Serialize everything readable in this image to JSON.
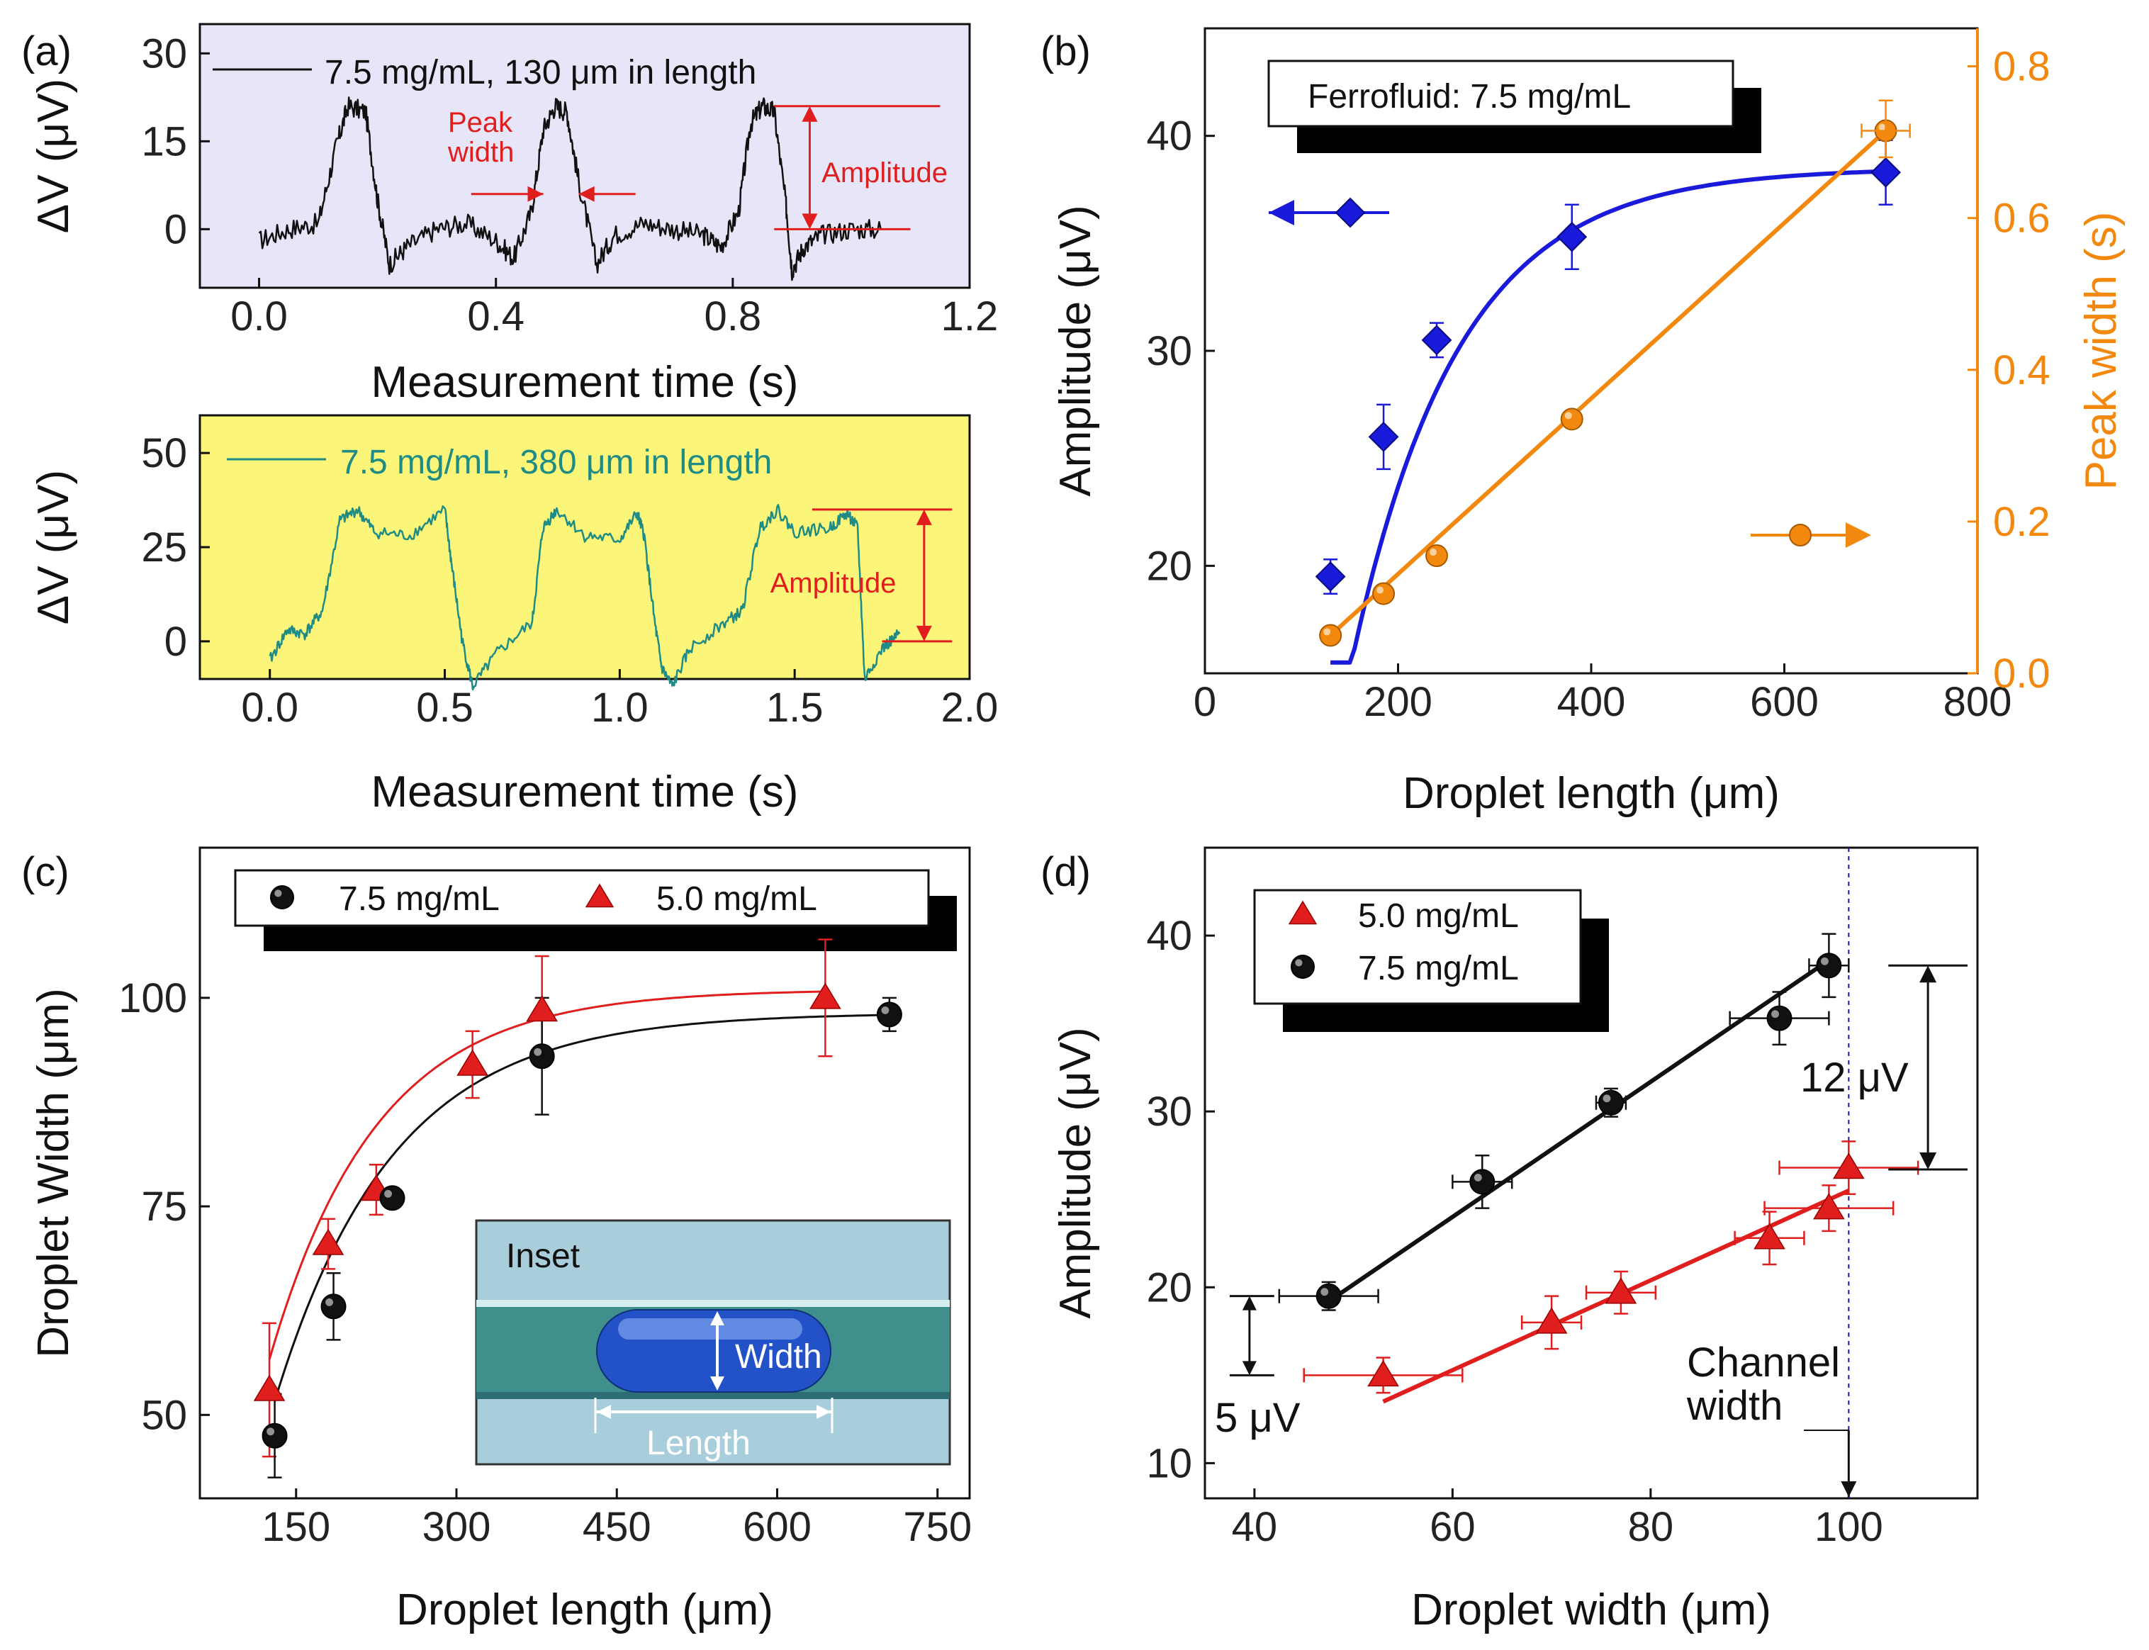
{
  "chart_data": [
    {
      "panel": "(a)",
      "type": "line",
      "subplots": [
        {
          "legend": "7.5 mg/mL, 130 μm in length",
          "xlabel": "Measurement time (s)",
          "ylabel": "ΔV (μV)",
          "xlim": [
            -0.1,
            1.2
          ],
          "ylim": [
            -10,
            35
          ],
          "xticks": [
            "0.0",
            "0.4",
            "0.8",
            "1.2"
          ],
          "yticks": [
            "0",
            "15",
            "30"
          ],
          "color": "#111111",
          "background": "#e7e6f8",
          "x": [
            0.0,
            0.05,
            0.1,
            0.13,
            0.15,
            0.18,
            0.2,
            0.22,
            0.25,
            0.3,
            0.35,
            0.4,
            0.43,
            0.46,
            0.48,
            0.5,
            0.52,
            0.54,
            0.57,
            0.6,
            0.65,
            0.7,
            0.75,
            0.78,
            0.81,
            0.83,
            0.85,
            0.87,
            0.89,
            0.9,
            0.92,
            0.95,
            1.0,
            1.05
          ],
          "values": [
            -2,
            0,
            1,
            14,
            21,
            20,
            5,
            -6,
            -3,
            0,
            1,
            -2,
            -5,
            3,
            17,
            21,
            20,
            8,
            -6,
            -1,
            1,
            0,
            -1,
            -3,
            3,
            18,
            21,
            20,
            4,
            -7,
            -3,
            -1,
            0,
            0
          ],
          "annotations": {
            "peak_width": "Peak\nwidth",
            "amplitude": "Amplitude"
          }
        },
        {
          "legend": "7.5 mg/mL, 380 μm in length",
          "xlabel": "Measurement time (s)",
          "ylabel": "ΔV (μV)",
          "xlim": [
            -0.2,
            2.0
          ],
          "ylim": [
            -10,
            60
          ],
          "xticks": [
            "0.0",
            "0.5",
            "1.0",
            "1.5",
            "2.0"
          ],
          "yticks": [
            "0",
            "25",
            "50"
          ],
          "color": "#1e8c85",
          "background": "#fbf57a",
          "x": [
            0.0,
            0.05,
            0.1,
            0.15,
            0.2,
            0.25,
            0.3,
            0.4,
            0.5,
            0.52,
            0.55,
            0.58,
            0.65,
            0.75,
            0.78,
            0.82,
            0.9,
            1.0,
            1.05,
            1.07,
            1.1,
            1.12,
            1.15,
            1.2,
            1.3,
            1.35,
            1.4,
            1.45,
            1.5,
            1.6,
            1.65,
            1.68,
            1.7,
            1.75,
            1.8
          ],
          "values": [
            -5,
            3,
            2,
            8,
            32,
            35,
            29,
            28,
            35,
            20,
            0,
            -12,
            -3,
            5,
            30,
            35,
            28,
            27,
            34,
            28,
            5,
            -7,
            -12,
            -2,
            5,
            8,
            30,
            35,
            29,
            30,
            34,
            30,
            -10,
            -2,
            2
          ],
          "annotations": {
            "amplitude": "Amplitude"
          }
        }
      ]
    },
    {
      "panel": "(b)",
      "type": "scatter",
      "title": "Ferrofluid: 7.5 mg/mL",
      "xlabel": "Droplet length (μm)",
      "ylabel": "Amplitude (μV)",
      "y2label": "Peak width (s)",
      "xlim": [
        0,
        800
      ],
      "ylim": [
        15,
        45
      ],
      "y2lim": [
        0,
        0.85
      ],
      "xticks": [
        "0",
        "200",
        "400",
        "600",
        "800"
      ],
      "yticks": [
        "20",
        "30",
        "40"
      ],
      "y2ticks": [
        "0.0",
        "0.2",
        "0.4",
        "0.6",
        "0.8"
      ],
      "series": [
        {
          "name": "Amplitude",
          "axis": "left",
          "marker": "diamond",
          "color": "#1a1adb",
          "x": [
            130,
            185,
            240,
            380,
            705
          ],
          "values": [
            19.5,
            26,
            30.5,
            35.3,
            38.3
          ],
          "yerr": [
            0.8,
            1.5,
            0.8,
            1.5,
            1.5
          ],
          "fit": "exponential"
        },
        {
          "name": "Peak width",
          "axis": "right",
          "marker": "circle",
          "color": "#f2890e",
          "x": [
            130,
            185,
            240,
            380,
            705
          ],
          "values": [
            0.05,
            0.105,
            0.155,
            0.335,
            0.715
          ],
          "fit": "linear"
        }
      ]
    },
    {
      "panel": "(c)",
      "type": "scatter",
      "xlabel": "Droplet length (μm)",
      "ylabel": "Droplet Width (μm)",
      "xlim": [
        60,
        780
      ],
      "ylim": [
        40,
        118
      ],
      "xticks": [
        "150",
        "300",
        "450",
        "600",
        "750"
      ],
      "yticks": [
        "50",
        "75",
        "100"
      ],
      "series": [
        {
          "name": "7.5 mg/mL",
          "marker": "sphere",
          "color": "#111111",
          "x": [
            130,
            185,
            240,
            380,
            705
          ],
          "values": [
            47.5,
            63,
            76,
            93,
            98
          ],
          "yerr": [
            5,
            4,
            1,
            7,
            2
          ],
          "fit": "exponential"
        },
        {
          "name": "5.0 mg/mL",
          "marker": "triangle",
          "color": "#e01e1e",
          "x": [
            125,
            180,
            225,
            315,
            380,
            645
          ],
          "values": [
            53,
            70.5,
            77,
            92,
            98.5,
            100
          ],
          "yerr": [
            8,
            3,
            3,
            4,
            6.5,
            7
          ],
          "fit": "exponential"
        }
      ],
      "inset": {
        "title": "Inset",
        "width_label": "Width",
        "length_label": "Length"
      }
    },
    {
      "panel": "(d)",
      "type": "scatter",
      "xlabel": "Droplet width (μm)",
      "ylabel": "Amplitude (μV)",
      "xlim": [
        35,
        113
      ],
      "ylim": [
        8,
        45
      ],
      "xticks": [
        "40",
        "60",
        "80",
        "100"
      ],
      "yticks": [
        "10",
        "20",
        "30",
        "40"
      ],
      "series": [
        {
          "name": "5.0 mg/mL",
          "marker": "triangle",
          "color": "#e01e1e",
          "x": [
            53,
            70,
            77,
            92,
            98,
            100
          ],
          "values": [
            15,
            18,
            19.7,
            22.8,
            24.5,
            26.8
          ],
          "yerr": [
            1,
            1.5,
            1.2,
            1.5,
            1.3,
            1.5
          ],
          "xerr": [
            8,
            3,
            3.5,
            3.5,
            6.5,
            7
          ],
          "fit": "linear"
        },
        {
          "name": "7.5 mg/mL",
          "marker": "sphere",
          "color": "#111111",
          "x": [
            47.5,
            63,
            76,
            93,
            98
          ],
          "values": [
            19.5,
            26,
            30.5,
            35.3,
            38.3
          ],
          "yerr": [
            0.8,
            1.5,
            0.8,
            1.5,
            1.8
          ],
          "xerr": [
            5,
            3,
            1.5,
            5,
            2
          ],
          "fit": "linear"
        }
      ],
      "annotations": {
        "diff_large": "12 μV",
        "diff_small": "5 μV",
        "channel_width": "Channel\nwidth"
      }
    }
  ],
  "labels": {
    "a": "(a)",
    "b": "(b)",
    "c": "(c)",
    "d": "(d)"
  }
}
